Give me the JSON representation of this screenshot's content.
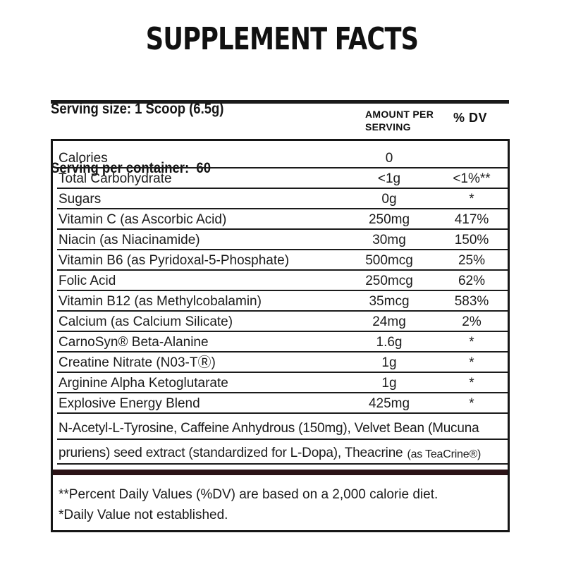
{
  "title": "SUPPLEMENT FACTS",
  "serving": {
    "size": "Serving size: 1 Scoop (6.5g)",
    "per_container": "Serving per container:  60"
  },
  "columns": {
    "amount_line1": "AMOUNT PER",
    "amount_line2": "SERVING",
    "dv": "% DV"
  },
  "rows": [
    {
      "name": "Calories",
      "amount": "0",
      "dv": ""
    },
    {
      "name": "Total Carbohydrate",
      "amount": "<1g",
      "dv": "<1%**"
    },
    {
      "name": "Sugars",
      "amount": "0g",
      "dv": "*"
    },
    {
      "name": "Vitamin C (as Ascorbic Acid)",
      "amount": "250mg",
      "dv": "417%"
    },
    {
      "name": "Niacin (as Niacinamide)",
      "amount": "30mg",
      "dv": "150%"
    },
    {
      "name": "Vitamin B6 (as Pyridoxal-5-Phosphate)",
      "amount": "500mcg",
      "dv": "25%"
    },
    {
      "name": "Folic Acid",
      "amount": "250mcg",
      "dv": "62%"
    },
    {
      "name": "Vitamin B12 (as Methylcobalamin)",
      "amount": "35mcg",
      "dv": "583%"
    },
    {
      "name": "Calcium (as Calcium Silicate)",
      "amount": "24mg",
      "dv": "2%"
    },
    {
      "name": "CarnoSyn® Beta-Alanine",
      "amount": "1.6g",
      "dv": "*"
    },
    {
      "name": "Creatine Nitrate (N03-TⓇ)",
      "amount": "1g",
      "dv": "*"
    },
    {
      "name": "Arginine Alpha Ketoglutarate",
      "amount": "1g",
      "dv": "*"
    },
    {
      "name": "Explosive Energy Blend",
      "amount": "425mg",
      "dv": "*"
    }
  ],
  "blend": {
    "line1": "N-Acetyl-L-Tyrosine, Caffeine Anhydrous (150mg), Velvet Bean (Mucuna",
    "line2": "pruriens) seed extract (standardized for L-Dopa), Theacrine",
    "line2_small": "(as TeaCrine®)"
  },
  "footnotes": {
    "line1": "**Percent Daily Values (%DV) are based on a 2,000 calorie diet.",
    "line2": "*Daily Value not established."
  },
  "colors": {
    "text": "#1b1b1b",
    "border": "#161616",
    "separator_bar": "#2b1317",
    "background": "#ffffff"
  }
}
